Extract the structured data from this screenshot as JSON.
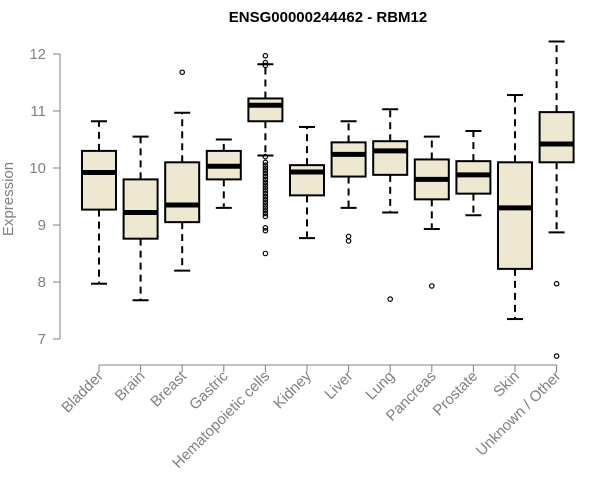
{
  "chart_data": {
    "type": "boxplot",
    "title": "ENSG00000244462 - RBM12",
    "xlabel": "",
    "ylabel": "Expression",
    "ylim": [
      6.7,
      12.3
    ],
    "yticks": [
      7,
      8,
      9,
      10,
      11,
      12
    ],
    "colors": {
      "box_fill": "#EEE8D0",
      "stroke": "#000000",
      "axis": "#808080",
      "title": "#000000"
    },
    "categories": [
      "Bladder",
      "Brain",
      "Breast",
      "Gastric",
      "Hematopoietic cells",
      "Kidney",
      "Liver",
      "Lung",
      "Pancreas",
      "Prostate",
      "Skin",
      "Unknown / Other"
    ],
    "boxes": [
      {
        "category": "Bladder",
        "whisker_low": 7.97,
        "q1": 9.27,
        "median": 9.92,
        "q3": 10.3,
        "whisker_high": 10.82,
        "outliers": []
      },
      {
        "category": "Brain",
        "whisker_low": 7.68,
        "q1": 8.76,
        "median": 9.22,
        "q3": 9.8,
        "whisker_high": 10.55,
        "outliers": []
      },
      {
        "category": "Breast",
        "whisker_low": 8.2,
        "q1": 9.05,
        "median": 9.35,
        "q3": 10.1,
        "whisker_high": 10.97,
        "outliers": [
          11.68
        ]
      },
      {
        "category": "Gastric",
        "whisker_low": 9.3,
        "q1": 9.8,
        "median": 10.03,
        "q3": 10.3,
        "whisker_high": 10.5,
        "outliers": []
      },
      {
        "category": "Hematopoietic cells",
        "whisker_low": 10.22,
        "q1": 10.82,
        "median": 11.1,
        "q3": 11.22,
        "whisker_high": 11.82,
        "outliers": [
          11.97,
          11.85,
          11.8,
          10.2,
          10.1,
          10.05,
          10.0,
          9.95,
          9.9,
          9.85,
          9.8,
          9.75,
          9.7,
          9.65,
          9.6,
          9.55,
          9.5,
          9.45,
          9.4,
          9.35,
          9.3,
          9.25,
          9.2,
          9.15,
          8.95,
          8.9,
          8.5
        ]
      },
      {
        "category": "Kidney",
        "whisker_low": 8.77,
        "q1": 9.52,
        "median": 9.93,
        "q3": 10.05,
        "whisker_high": 10.72,
        "outliers": []
      },
      {
        "category": "Liver",
        "whisker_low": 9.3,
        "q1": 9.85,
        "median": 10.24,
        "q3": 10.45,
        "whisker_high": 10.82,
        "outliers": [
          8.8,
          8.72
        ]
      },
      {
        "category": "Lung",
        "whisker_low": 9.22,
        "q1": 9.88,
        "median": 10.3,
        "q3": 10.47,
        "whisker_high": 11.03,
        "outliers": [
          7.7
        ]
      },
      {
        "category": "Pancreas",
        "whisker_low": 8.93,
        "q1": 9.45,
        "median": 9.8,
        "q3": 10.15,
        "whisker_high": 10.55,
        "outliers": [
          7.93
        ]
      },
      {
        "category": "Prostate",
        "whisker_low": 9.17,
        "q1": 9.55,
        "median": 9.88,
        "q3": 10.12,
        "whisker_high": 10.65,
        "outliers": []
      },
      {
        "category": "Skin",
        "whisker_low": 7.35,
        "q1": 8.23,
        "median": 9.3,
        "q3": 10.1,
        "whisker_high": 11.28,
        "outliers": []
      },
      {
        "category": "Unknown / Other",
        "whisker_low": 8.87,
        "q1": 10.1,
        "median": 10.42,
        "q3": 10.98,
        "whisker_high": 12.22,
        "outliers": [
          7.97,
          6.7
        ]
      }
    ]
  }
}
